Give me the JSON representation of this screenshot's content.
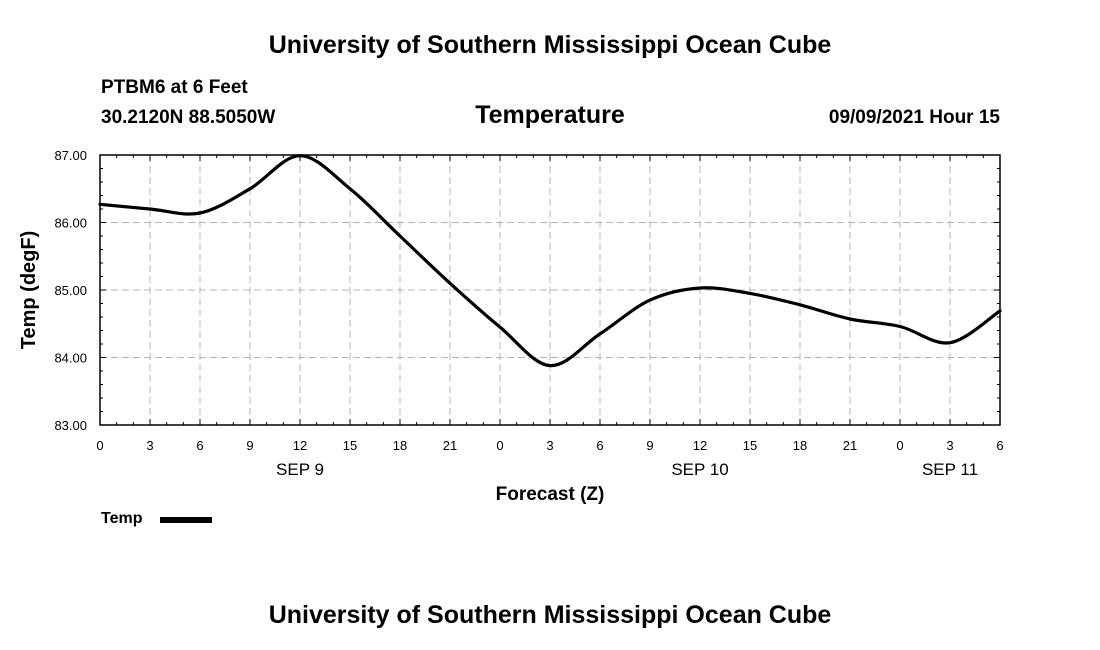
{
  "header": {
    "title_top": "University of Southern Mississippi Ocean Cube",
    "title_bottom": "University of Southern Mississippi Ocean Cube",
    "station": "PTBM6 at 6 Feet",
    "location": "30.2120N  88.5050W",
    "datetime": "09/09/2021 Hour 15"
  },
  "chart_data": {
    "type": "line",
    "title": "Temperature",
    "xlabel": "Forecast (Z)",
    "ylabel": "Temp (degF)",
    "xlim": [
      0,
      54
    ],
    "ylim": [
      83,
      87
    ],
    "grid": true,
    "x_ticks": [
      0,
      3,
      6,
      9,
      12,
      15,
      18,
      21,
      24,
      27,
      30,
      33,
      36,
      39,
      42,
      45,
      48,
      51,
      54
    ],
    "x_tick_labels": [
      "0",
      "3",
      "6",
      "9",
      "12",
      "15",
      "18",
      "21",
      "0",
      "3",
      "6",
      "9",
      "12",
      "15",
      "18",
      "21",
      "0",
      "3",
      "6"
    ],
    "y_ticks": [
      83,
      84,
      85,
      86,
      87
    ],
    "y_tick_labels": [
      "83.00",
      "84.00",
      "85.00",
      "86.00",
      "87.00"
    ],
    "date_labels": [
      {
        "x": 12,
        "label": "SEP 9"
      },
      {
        "x": 36,
        "label": "SEP 10"
      },
      {
        "x": 51,
        "label": "SEP 11"
      }
    ],
    "series": [
      {
        "name": "Temp",
        "x": [
          0,
          3,
          6,
          9,
          12,
          15,
          18,
          21,
          24,
          27,
          30,
          33,
          36,
          39,
          42,
          45,
          48,
          51,
          54
        ],
        "values": [
          86.27,
          86.2,
          86.14,
          86.5,
          86.99,
          86.5,
          85.8,
          85.1,
          84.45,
          83.88,
          84.35,
          84.85,
          85.03,
          84.95,
          84.78,
          84.57,
          84.46,
          84.22,
          84.69
        ]
      }
    ],
    "legend": {
      "position": "bottom-left",
      "label": "Temp"
    }
  }
}
